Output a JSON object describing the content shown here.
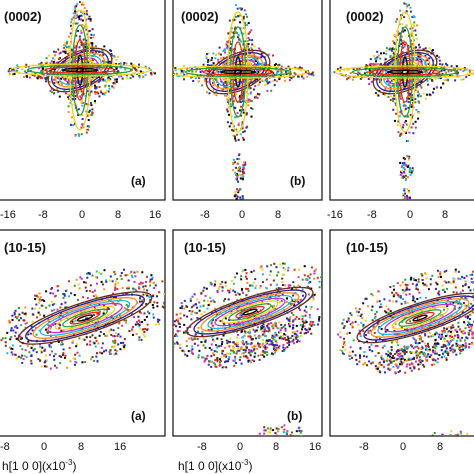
{
  "figure": {
    "x_axis_label": "h[1 0 0](x10",
    "x_axis_label_exp": "-3",
    "x_axis_label_close": ")",
    "contour_colors": [
      "#1f2bd6",
      "#000000",
      "#e8281c",
      "#2ca02c",
      "#f2d21b",
      "#c42fd1",
      "#1fb7d8",
      "#ff8c1a",
      "#2d1f8f",
      "#6b2f1a"
    ]
  },
  "rows": [
    {
      "reflection": "(0002)",
      "tick_labels": [
        "-16",
        "-8",
        "0",
        "8",
        "16"
      ],
      "panels": [
        {
          "label": "(a)",
          "reflection": "(0002)"
        },
        {
          "label": "(b)",
          "reflection": "(0002)"
        },
        {
          "label": "",
          "reflection": "(0002)"
        }
      ]
    },
    {
      "reflection": "(10-15)",
      "tick_labels": [
        "-8",
        "0",
        "8",
        "16"
      ],
      "panels": [
        {
          "label": "(a)",
          "reflection": "(10-15)"
        },
        {
          "label": "(b)",
          "reflection": "(10-15)"
        },
        {
          "label": "",
          "reflection": "(10-15)"
        }
      ]
    }
  ]
}
